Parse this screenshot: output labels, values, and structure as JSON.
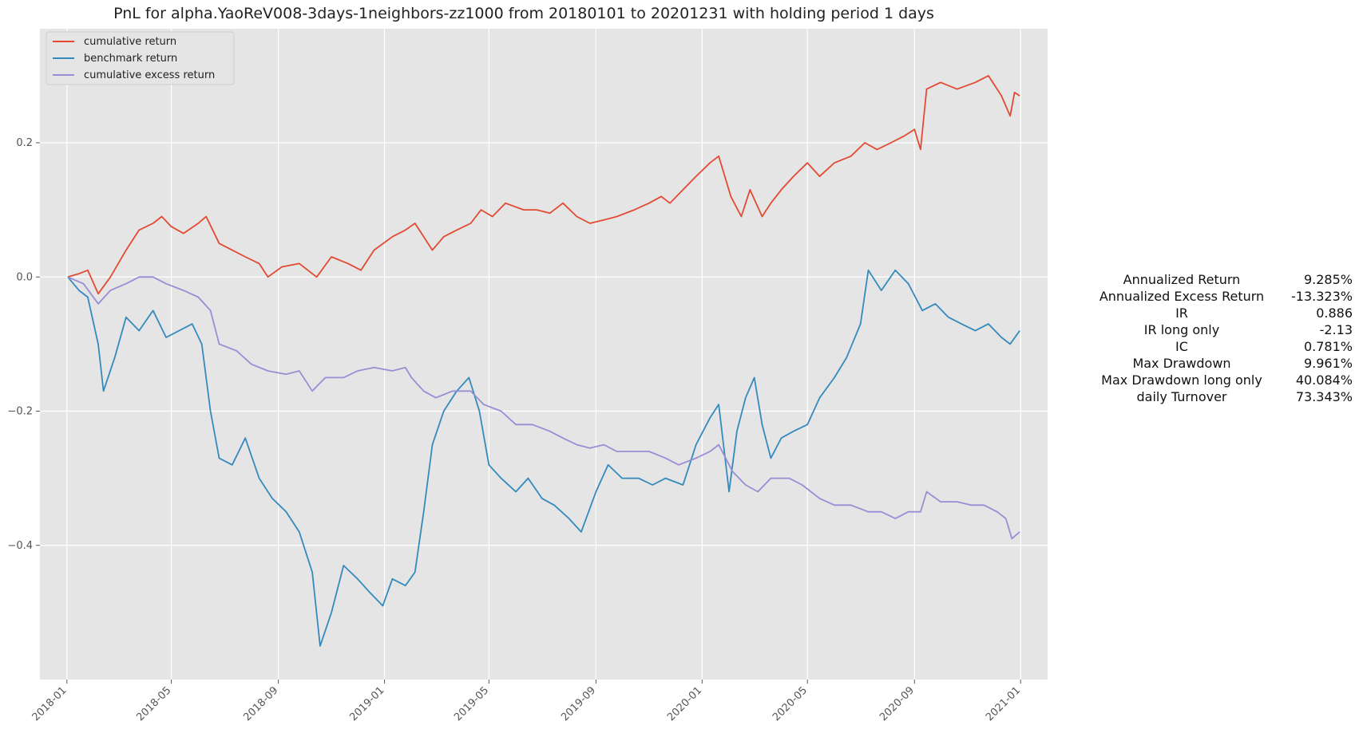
{
  "chart_data": {
    "type": "line",
    "title": "PnL for alpha.YaoReV008-3days-1neighbors-zz1000 from 20180101 to 20201231 with holding period 1 days",
    "xlabel": "",
    "ylabel": "",
    "x_range": [
      "2017-12-01",
      "2021-02-01"
    ],
    "ylim": [
      -0.6,
      0.37
    ],
    "x_ticks": [
      "2018-01",
      "2018-05",
      "2018-09",
      "2019-01",
      "2019-05",
      "2019-09",
      "2020-01",
      "2020-05",
      "2020-09",
      "2021-01"
    ],
    "y_ticks": [
      0.2,
      0.0,
      -0.2,
      -0.4
    ],
    "y_tick_labels": [
      "0.2",
      "0.0",
      "−0.2",
      "−0.4"
    ],
    "grid": true,
    "legend_position": "top-left",
    "series": [
      {
        "name": "cumulative return",
        "color": "#e24a33",
        "points": [
          [
            "2018-01-02",
            0.0
          ],
          [
            "2018-01-15",
            0.005
          ],
          [
            "2018-01-25",
            0.01
          ],
          [
            "2018-02-06",
            -0.025
          ],
          [
            "2018-02-20",
            0.0
          ],
          [
            "2018-03-10",
            0.04
          ],
          [
            "2018-03-25",
            0.07
          ],
          [
            "2018-04-10",
            0.08
          ],
          [
            "2018-04-20",
            0.09
          ],
          [
            "2018-05-01",
            0.075
          ],
          [
            "2018-05-15",
            0.065
          ],
          [
            "2018-06-01",
            0.08
          ],
          [
            "2018-06-10",
            0.09
          ],
          [
            "2018-06-25",
            0.05
          ],
          [
            "2018-07-10",
            0.04
          ],
          [
            "2018-07-25",
            0.03
          ],
          [
            "2018-08-10",
            0.02
          ],
          [
            "2018-08-20",
            0.0
          ],
          [
            "2018-09-05",
            0.015
          ],
          [
            "2018-09-25",
            0.02
          ],
          [
            "2018-10-15",
            0.0
          ],
          [
            "2018-11-01",
            0.03
          ],
          [
            "2018-11-20",
            0.02
          ],
          [
            "2018-12-05",
            0.01
          ],
          [
            "2018-12-20",
            0.04
          ],
          [
            "2019-01-10",
            0.06
          ],
          [
            "2019-01-25",
            0.07
          ],
          [
            "2019-02-05",
            0.08
          ],
          [
            "2019-02-15",
            0.06
          ],
          [
            "2019-02-25",
            0.04
          ],
          [
            "2019-03-10",
            0.06
          ],
          [
            "2019-03-25",
            0.07
          ],
          [
            "2019-04-10",
            0.08
          ],
          [
            "2019-04-22",
            0.1
          ],
          [
            "2019-05-05",
            0.09
          ],
          [
            "2019-05-20",
            0.11
          ],
          [
            "2019-06-10",
            0.1
          ],
          [
            "2019-06-25",
            0.1
          ],
          [
            "2019-07-10",
            0.095
          ],
          [
            "2019-07-25",
            0.11
          ],
          [
            "2019-08-10",
            0.09
          ],
          [
            "2019-08-25",
            0.08
          ],
          [
            "2019-09-10",
            0.085
          ],
          [
            "2019-09-25",
            0.09
          ],
          [
            "2019-10-15",
            0.1
          ],
          [
            "2019-11-01",
            0.11
          ],
          [
            "2019-11-15",
            0.12
          ],
          [
            "2019-11-25",
            0.11
          ],
          [
            "2019-12-10",
            0.13
          ],
          [
            "2019-12-25",
            0.15
          ],
          [
            "2020-01-10",
            0.17
          ],
          [
            "2020-01-20",
            0.18
          ],
          [
            "2020-02-03",
            0.12
          ],
          [
            "2020-02-15",
            0.09
          ],
          [
            "2020-02-25",
            0.13
          ],
          [
            "2020-03-10",
            0.09
          ],
          [
            "2020-03-20",
            0.11
          ],
          [
            "2020-04-01",
            0.13
          ],
          [
            "2020-04-15",
            0.15
          ],
          [
            "2020-05-01",
            0.17
          ],
          [
            "2020-05-15",
            0.15
          ],
          [
            "2020-06-01",
            0.17
          ],
          [
            "2020-06-20",
            0.18
          ],
          [
            "2020-07-06",
            0.2
          ],
          [
            "2020-07-20",
            0.19
          ],
          [
            "2020-08-05",
            0.2
          ],
          [
            "2020-08-20",
            0.21
          ],
          [
            "2020-09-01",
            0.22
          ],
          [
            "2020-09-08",
            0.19
          ],
          [
            "2020-09-15",
            0.28
          ],
          [
            "2020-10-01",
            0.29
          ],
          [
            "2020-10-20",
            0.28
          ],
          [
            "2020-11-10",
            0.29
          ],
          [
            "2020-11-25",
            0.3
          ],
          [
            "2020-12-10",
            0.27
          ],
          [
            "2020-12-20",
            0.24
          ],
          [
            "2020-12-25",
            0.275
          ],
          [
            "2020-12-31",
            0.27
          ]
        ]
      },
      {
        "name": "benchmark return",
        "color": "#348abd",
        "points": [
          [
            "2018-01-02",
            0.0
          ],
          [
            "2018-01-15",
            -0.02
          ],
          [
            "2018-01-25",
            -0.03
          ],
          [
            "2018-02-06",
            -0.1
          ],
          [
            "2018-02-12",
            -0.17
          ],
          [
            "2018-02-25",
            -0.12
          ],
          [
            "2018-03-10",
            -0.06
          ],
          [
            "2018-03-25",
            -0.08
          ],
          [
            "2018-04-10",
            -0.05
          ],
          [
            "2018-04-25",
            -0.09
          ],
          [
            "2018-05-10",
            -0.08
          ],
          [
            "2018-05-25",
            -0.07
          ],
          [
            "2018-06-05",
            -0.1
          ],
          [
            "2018-06-15",
            -0.2
          ],
          [
            "2018-06-25",
            -0.27
          ],
          [
            "2018-07-10",
            -0.28
          ],
          [
            "2018-07-25",
            -0.24
          ],
          [
            "2018-08-10",
            -0.3
          ],
          [
            "2018-08-25",
            -0.33
          ],
          [
            "2018-09-10",
            -0.35
          ],
          [
            "2018-09-25",
            -0.38
          ],
          [
            "2018-10-10",
            -0.44
          ],
          [
            "2018-10-19",
            -0.55
          ],
          [
            "2018-11-01",
            -0.5
          ],
          [
            "2018-11-15",
            -0.43
          ],
          [
            "2018-12-01",
            -0.45
          ],
          [
            "2018-12-15",
            -0.47
          ],
          [
            "2018-12-30",
            -0.49
          ],
          [
            "2019-01-10",
            -0.45
          ],
          [
            "2019-01-25",
            -0.46
          ],
          [
            "2019-02-05",
            -0.44
          ],
          [
            "2019-02-15",
            -0.35
          ],
          [
            "2019-02-25",
            -0.25
          ],
          [
            "2019-03-10",
            -0.2
          ],
          [
            "2019-03-25",
            -0.17
          ],
          [
            "2019-04-08",
            -0.15
          ],
          [
            "2019-04-20",
            -0.2
          ],
          [
            "2019-05-01",
            -0.28
          ],
          [
            "2019-05-15",
            -0.3
          ],
          [
            "2019-06-01",
            -0.32
          ],
          [
            "2019-06-15",
            -0.3
          ],
          [
            "2019-07-01",
            -0.33
          ],
          [
            "2019-07-15",
            -0.34
          ],
          [
            "2019-08-01",
            -0.36
          ],
          [
            "2019-08-15",
            -0.38
          ],
          [
            "2019-09-01",
            -0.32
          ],
          [
            "2019-09-15",
            -0.28
          ],
          [
            "2019-10-01",
            -0.3
          ],
          [
            "2019-10-20",
            -0.3
          ],
          [
            "2019-11-05",
            -0.31
          ],
          [
            "2019-11-20",
            -0.3
          ],
          [
            "2019-12-10",
            -0.31
          ],
          [
            "2019-12-25",
            -0.25
          ],
          [
            "2020-01-10",
            -0.21
          ],
          [
            "2020-01-20",
            -0.19
          ],
          [
            "2020-02-01",
            -0.32
          ],
          [
            "2020-02-10",
            -0.23
          ],
          [
            "2020-02-20",
            -0.18
          ],
          [
            "2020-03-01",
            -0.15
          ],
          [
            "2020-03-10",
            -0.22
          ],
          [
            "2020-03-20",
            -0.27
          ],
          [
            "2020-04-01",
            -0.24
          ],
          [
            "2020-04-15",
            -0.23
          ],
          [
            "2020-05-01",
            -0.22
          ],
          [
            "2020-05-15",
            -0.18
          ],
          [
            "2020-06-01",
            -0.15
          ],
          [
            "2020-06-15",
            -0.12
          ],
          [
            "2020-07-01",
            -0.07
          ],
          [
            "2020-07-10",
            0.01
          ],
          [
            "2020-07-25",
            -0.02
          ],
          [
            "2020-08-10",
            0.01
          ],
          [
            "2020-08-25",
            -0.01
          ],
          [
            "2020-09-10",
            -0.05
          ],
          [
            "2020-09-25",
            -0.04
          ],
          [
            "2020-10-10",
            -0.06
          ],
          [
            "2020-10-25",
            -0.07
          ],
          [
            "2020-11-10",
            -0.08
          ],
          [
            "2020-11-25",
            -0.07
          ],
          [
            "2020-12-10",
            -0.09
          ],
          [
            "2020-12-20",
            -0.1
          ],
          [
            "2020-12-31",
            -0.08
          ]
        ]
      },
      {
        "name": "cumulative excess return",
        "color": "#988ed5",
        "points": [
          [
            "2018-01-02",
            0.0
          ],
          [
            "2018-01-20",
            -0.01
          ],
          [
            "2018-02-06",
            -0.04
          ],
          [
            "2018-02-20",
            -0.02
          ],
          [
            "2018-03-10",
            -0.01
          ],
          [
            "2018-03-25",
            0.0
          ],
          [
            "2018-04-10",
            0.0
          ],
          [
            "2018-04-25",
            -0.01
          ],
          [
            "2018-05-15",
            -0.02
          ],
          [
            "2018-06-01",
            -0.03
          ],
          [
            "2018-06-15",
            -0.05
          ],
          [
            "2018-06-25",
            -0.1
          ],
          [
            "2018-07-15",
            -0.11
          ],
          [
            "2018-08-01",
            -0.13
          ],
          [
            "2018-08-20",
            -0.14
          ],
          [
            "2018-09-10",
            -0.145
          ],
          [
            "2018-09-25",
            -0.14
          ],
          [
            "2018-10-10",
            -0.17
          ],
          [
            "2018-10-25",
            -0.15
          ],
          [
            "2018-11-15",
            -0.15
          ],
          [
            "2018-12-01",
            -0.14
          ],
          [
            "2018-12-20",
            -0.135
          ],
          [
            "2019-01-10",
            -0.14
          ],
          [
            "2019-01-25",
            -0.135
          ],
          [
            "2019-02-01",
            -0.15
          ],
          [
            "2019-02-15",
            -0.17
          ],
          [
            "2019-03-01",
            -0.18
          ],
          [
            "2019-03-20",
            -0.17
          ],
          [
            "2019-04-10",
            -0.17
          ],
          [
            "2019-04-25",
            -0.19
          ],
          [
            "2019-05-15",
            -0.2
          ],
          [
            "2019-06-01",
            -0.22
          ],
          [
            "2019-06-20",
            -0.22
          ],
          [
            "2019-07-10",
            -0.23
          ],
          [
            "2019-07-25",
            -0.24
          ],
          [
            "2019-08-10",
            -0.25
          ],
          [
            "2019-08-25",
            -0.255
          ],
          [
            "2019-09-10",
            -0.25
          ],
          [
            "2019-09-25",
            -0.26
          ],
          [
            "2019-10-15",
            -0.26
          ],
          [
            "2019-11-01",
            -0.26
          ],
          [
            "2019-11-20",
            -0.27
          ],
          [
            "2019-12-05",
            -0.28
          ],
          [
            "2019-12-25",
            -0.27
          ],
          [
            "2020-01-10",
            -0.26
          ],
          [
            "2020-01-20",
            -0.25
          ],
          [
            "2020-02-05",
            -0.29
          ],
          [
            "2020-02-20",
            -0.31
          ],
          [
            "2020-03-05",
            -0.32
          ],
          [
            "2020-03-20",
            -0.3
          ],
          [
            "2020-04-10",
            -0.3
          ],
          [
            "2020-04-25",
            -0.31
          ],
          [
            "2020-05-15",
            -0.33
          ],
          [
            "2020-06-01",
            -0.34
          ],
          [
            "2020-06-20",
            -0.34
          ],
          [
            "2020-07-10",
            -0.35
          ],
          [
            "2020-07-25",
            -0.35
          ],
          [
            "2020-08-10",
            -0.36
          ],
          [
            "2020-08-25",
            -0.35
          ],
          [
            "2020-09-08",
            -0.35
          ],
          [
            "2020-09-15",
            -0.32
          ],
          [
            "2020-10-01",
            -0.335
          ],
          [
            "2020-10-20",
            -0.335
          ],
          [
            "2020-11-05",
            -0.34
          ],
          [
            "2020-11-20",
            -0.34
          ],
          [
            "2020-12-05",
            -0.35
          ],
          [
            "2020-12-15",
            -0.36
          ],
          [
            "2020-12-22",
            -0.39
          ],
          [
            "2020-12-31",
            -0.38
          ]
        ]
      }
    ]
  },
  "stats": [
    {
      "label": "Annualized Return",
      "value": "9.285%"
    },
    {
      "label": "Annualized Excess Return",
      "value": "-13.323%"
    },
    {
      "label": "IR",
      "value": "0.886"
    },
    {
      "label": "IR long only",
      "value": "-2.13"
    },
    {
      "label": "IC",
      "value": "0.781%"
    },
    {
      "label": "Max Drawdown",
      "value": "9.961%"
    },
    {
      "label": "Max Drawdown long only",
      "value": "40.084%"
    },
    {
      "label": "daily Turnover",
      "value": "73.343%"
    }
  ]
}
